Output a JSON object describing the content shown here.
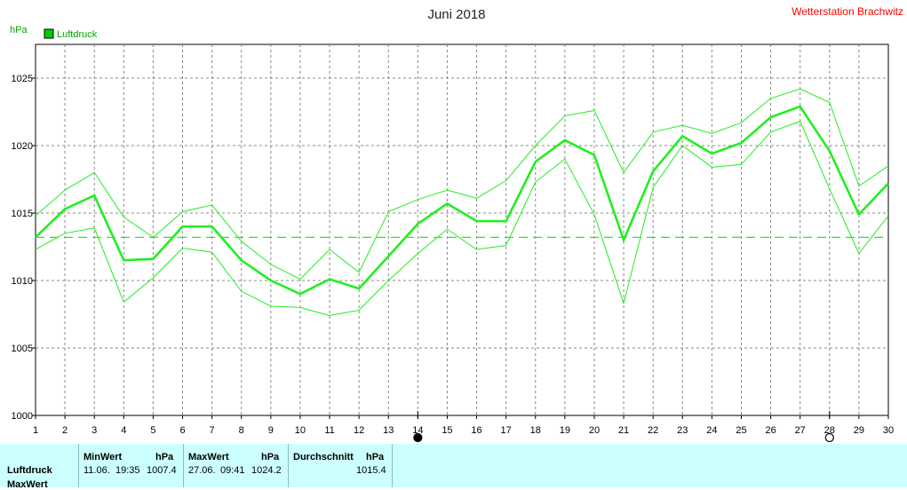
{
  "header": {
    "title": "Juni 2018",
    "station": "Wetterstation Brachwitz",
    "unit": "hPa"
  },
  "legend": {
    "label": "Luftdruck",
    "color": "#00cc00"
  },
  "colors": {
    "series": "#22ee22",
    "grid": "#888888",
    "background": "#ffffff",
    "table_bg": "#ccffff"
  },
  "chart_data": {
    "type": "line",
    "title": "Juni 2018",
    "ylabel": "hPa",
    "x": [
      1,
      2,
      3,
      4,
      5,
      6,
      7,
      8,
      9,
      10,
      11,
      12,
      13,
      14,
      15,
      16,
      17,
      18,
      19,
      20,
      21,
      22,
      23,
      24,
      25,
      26,
      27,
      28,
      29,
      30
    ],
    "xlim": [
      1,
      30
    ],
    "ylim": [
      1000,
      1027.5
    ],
    "yticks": [
      1000,
      1005,
      1010,
      1015,
      1020,
      1025
    ],
    "grid": true,
    "legend_position": "top-left",
    "series": [
      {
        "name": "Luftdruck",
        "role": "mean",
        "values": [
          1013.2,
          1015.3,
          1016.3,
          1011.5,
          1011.6,
          1014.0,
          1014.0,
          1011.5,
          1010.0,
          1009.0,
          1010.1,
          1009.4,
          1011.8,
          1014.2,
          1015.7,
          1014.4,
          1014.4,
          1018.8,
          1020.4,
          1019.3,
          1013.0,
          1018.1,
          1020.7,
          1019.4,
          1020.2,
          1022.1,
          1022.9,
          1019.6,
          1014.9,
          1017.2
        ]
      },
      {
        "role": "max",
        "values": [
          1014.8,
          1016.7,
          1018.0,
          1014.7,
          1013.2,
          1015.1,
          1015.6,
          1012.9,
          1011.2,
          1010.1,
          1012.3,
          1010.6,
          1015.1,
          1016.0,
          1016.7,
          1016.1,
          1017.4,
          1020.0,
          1022.2,
          1022.6,
          1018.0,
          1021.0,
          1021.5,
          1020.9,
          1021.7,
          1023.5,
          1024.2,
          1023.2,
          1017.0,
          1018.5
        ]
      },
      {
        "role": "min",
        "values": [
          1012.3,
          1013.5,
          1013.9,
          1008.4,
          1010.2,
          1012.4,
          1012.1,
          1009.2,
          1008.1,
          1008.0,
          1007.4,
          1007.8,
          1010.0,
          1012.0,
          1013.8,
          1012.3,
          1012.6,
          1017.3,
          1019.0,
          1014.9,
          1008.3,
          1016.9,
          1020.0,
          1018.4,
          1018.6,
          1021.0,
          1021.8,
          1016.8,
          1012.0,
          1014.8
        ]
      }
    ],
    "average_line": 1013.2,
    "markers": [
      {
        "day": 14,
        "type": "filled-circle"
      },
      {
        "day": 28,
        "type": "open-circle"
      }
    ]
  },
  "stats": {
    "row_label": "Luftdruck",
    "row_label2": "MaxWert",
    "min": {
      "header": "MinWert",
      "unit": "hPa",
      "date": "11.06.",
      "time": "19:35",
      "value": "1007.4"
    },
    "max": {
      "header": "MaxWert",
      "unit": "hPa",
      "date": "27.06.",
      "time": "09:41",
      "value": "1024.2"
    },
    "avg": {
      "header": "Durchschnitt",
      "unit": "hPa",
      "value": "1015.4"
    }
  }
}
